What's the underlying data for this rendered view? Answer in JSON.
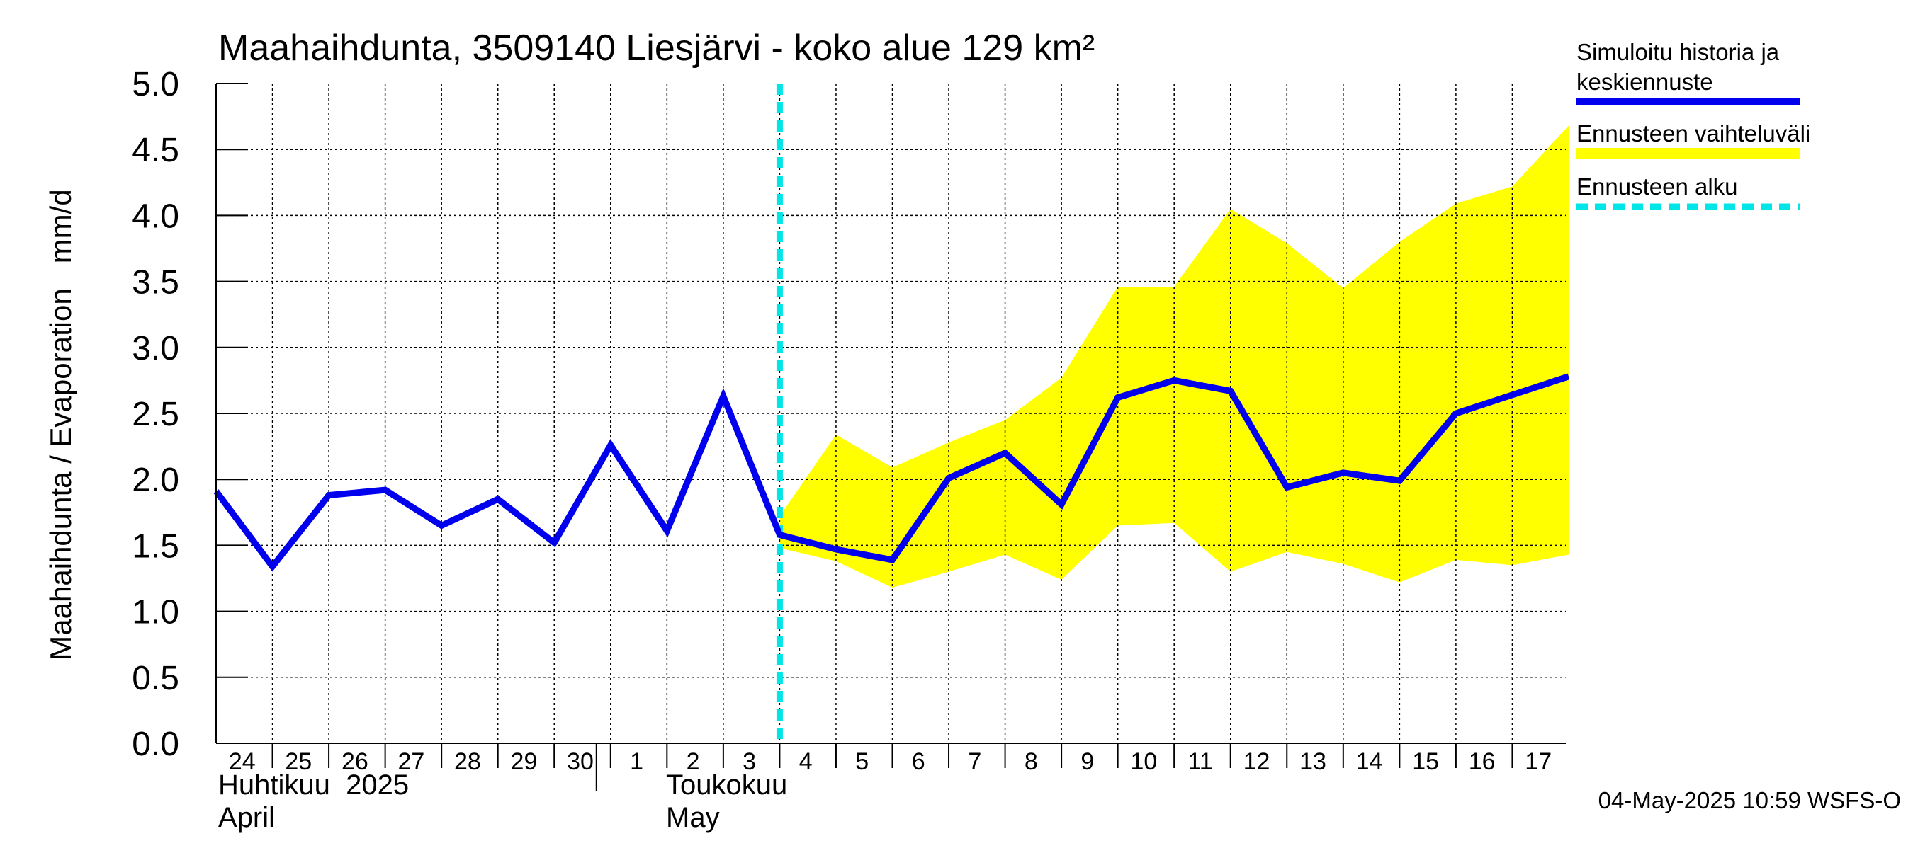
{
  "colors": {
    "history": "#0000ee",
    "band": "#ffff00",
    "forecast_start": "#00e5e5",
    "grid": "#000000",
    "background": "#ffffff"
  },
  "chart_data": {
    "type": "line",
    "title": "Maahaihdunta, 3509140 Liesjärvi - koko alue 129 km²",
    "ylabel": "Maahaihdunta / Evaporation   mm/d",
    "ylim": [
      0.0,
      5.0
    ],
    "yticks": [
      "0.0",
      "0.5",
      "1.0",
      "1.5",
      "2.0",
      "2.5",
      "3.0",
      "3.5",
      "4.0",
      "4.5",
      "5.0"
    ],
    "grid": true,
    "legend_position": "right",
    "x_day_labels": [
      "24",
      "25",
      "26",
      "27",
      "28",
      "29",
      "30",
      "1",
      "2",
      "3",
      "4",
      "5",
      "6",
      "7",
      "8",
      "9",
      "10",
      "11",
      "12",
      "13",
      "14",
      "15",
      "16",
      "17"
    ],
    "month_labels": [
      {
        "fi": "Huhtikuu  2025",
        "en": "April"
      },
      {
        "fi": "Toukokuu",
        "en": "May"
      }
    ],
    "legend": [
      {
        "lines": [
          "Simuloitu historia ja",
          "keskiennuste"
        ]
      },
      {
        "lines": [
          "Ennusteen vaihteluväli"
        ]
      },
      {
        "lines": [
          "Ennusteen alku"
        ]
      }
    ],
    "forecast_start_day_index": 10,
    "series": [
      {
        "x": [
          0,
          1,
          2,
          3,
          4,
          5,
          6,
          7,
          8,
          9,
          10,
          11,
          12,
          13,
          14,
          15,
          16,
          17,
          18,
          19,
          20,
          21,
          22,
          23,
          24
        ],
        "values": [
          1.91,
          1.34,
          1.88,
          1.92,
          1.65,
          1.85,
          1.52,
          2.26,
          1.61,
          2.63,
          1.58,
          1.47,
          1.39,
          2.01,
          2.2,
          1.81,
          2.62,
          2.75,
          2.67,
          1.94,
          2.05,
          1.99,
          2.5,
          2.64,
          2.78
        ]
      }
    ],
    "band": {
      "x": [
        10,
        11,
        12,
        13,
        14,
        15,
        16,
        17,
        18,
        19,
        20,
        21,
        22,
        23,
        24
      ],
      "lower": [
        1.48,
        1.38,
        1.18,
        1.3,
        1.43,
        1.24,
        1.65,
        1.67,
        1.3,
        1.45,
        1.36,
        1.22,
        1.39,
        1.35,
        1.43
      ],
      "upper": [
        1.72,
        2.34,
        2.09,
        2.28,
        2.45,
        2.77,
        3.46,
        3.46,
        4.05,
        3.79,
        3.45,
        3.8,
        4.09,
        4.22,
        4.68
      ]
    }
  },
  "footer": {
    "timestamp": "04-May-2025 10:59 WSFS-O"
  }
}
